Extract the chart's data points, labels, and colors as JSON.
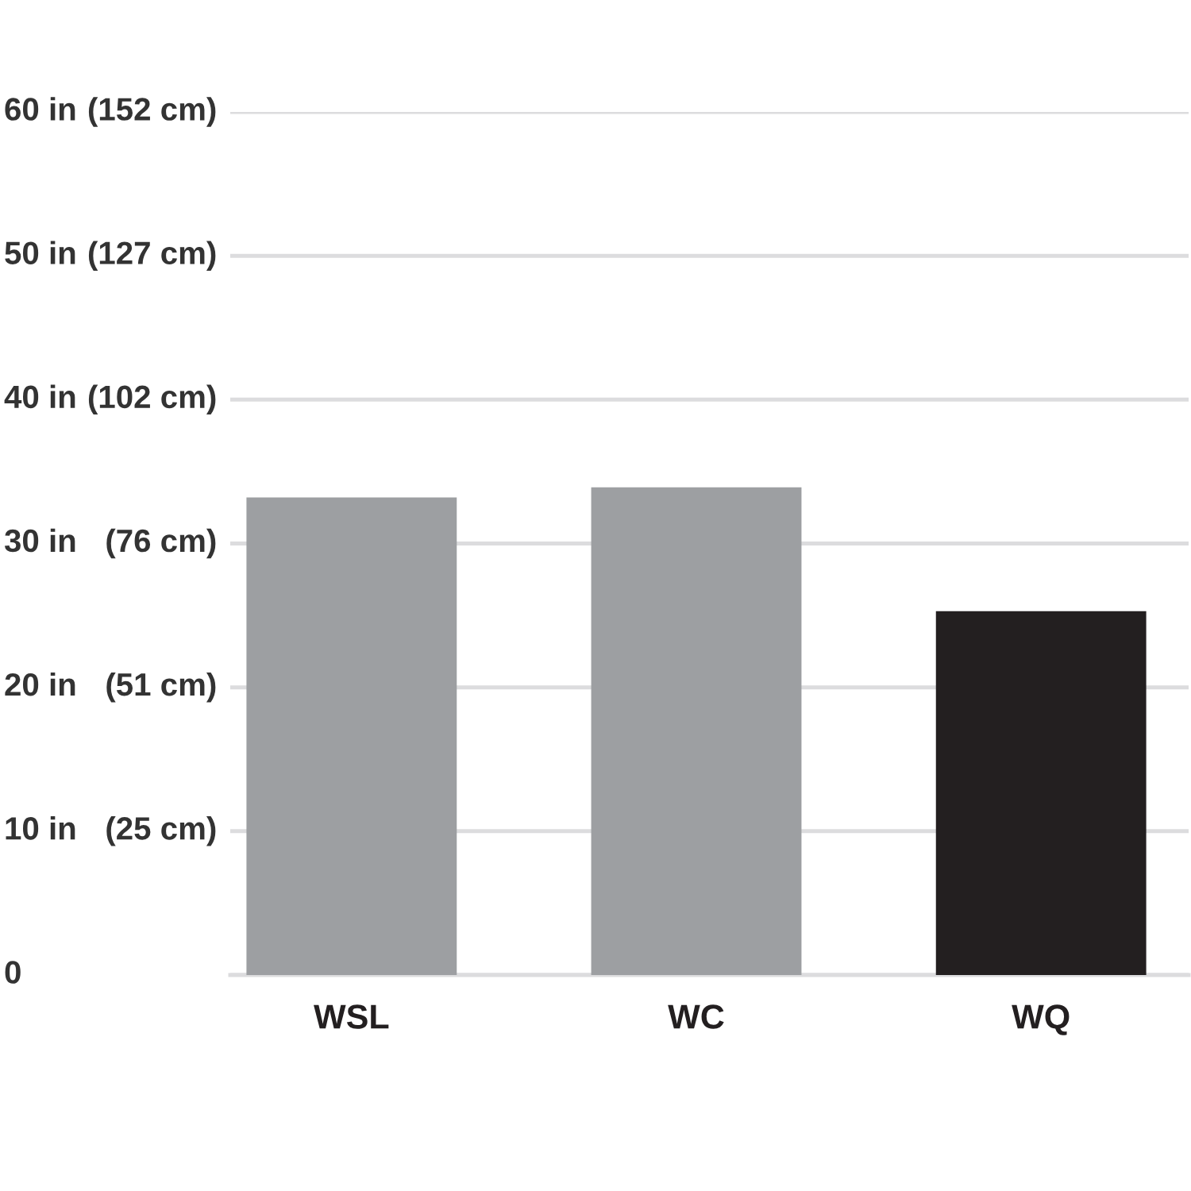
{
  "chart_data": {
    "type": "bar",
    "categories": [
      "WSL",
      "WC",
      "WQ"
    ],
    "values": [
      33.2,
      33.9,
      25.3
    ],
    "colors": [
      "#9d9fa2",
      "#9d9fa2",
      "#231f20"
    ],
    "ylim": [
      0,
      60
    ],
    "yticks": [
      0,
      {
        "value": 10,
        "label": "10 in"
      },
      {
        "value": 20,
        "label": "20 in"
      },
      {
        "value": 30,
        "label": "30 in"
      },
      {
        "value": 40,
        "label": "40 in"
      },
      {
        "value": 50,
        "label": "50 in"
      },
      {
        "value": 60,
        "label": "60 in"
      }
    ],
    "y2lim": [
      0,
      152.4
    ],
    "y2ticks": [
      {
        "value": 25.4,
        "label": "(25 cm)"
      },
      {
        "value": 50.8,
        "label": "(51 cm)"
      },
      {
        "value": 76.2,
        "label": "(76 cm)"
      },
      {
        "value": 101.6,
        "label": "(102 cm)"
      },
      {
        "value": 127,
        "label": "(127 cm)"
      },
      {
        "value": 152.4,
        "label": "(152 cm)"
      }
    ],
    "grid": "y"
  }
}
